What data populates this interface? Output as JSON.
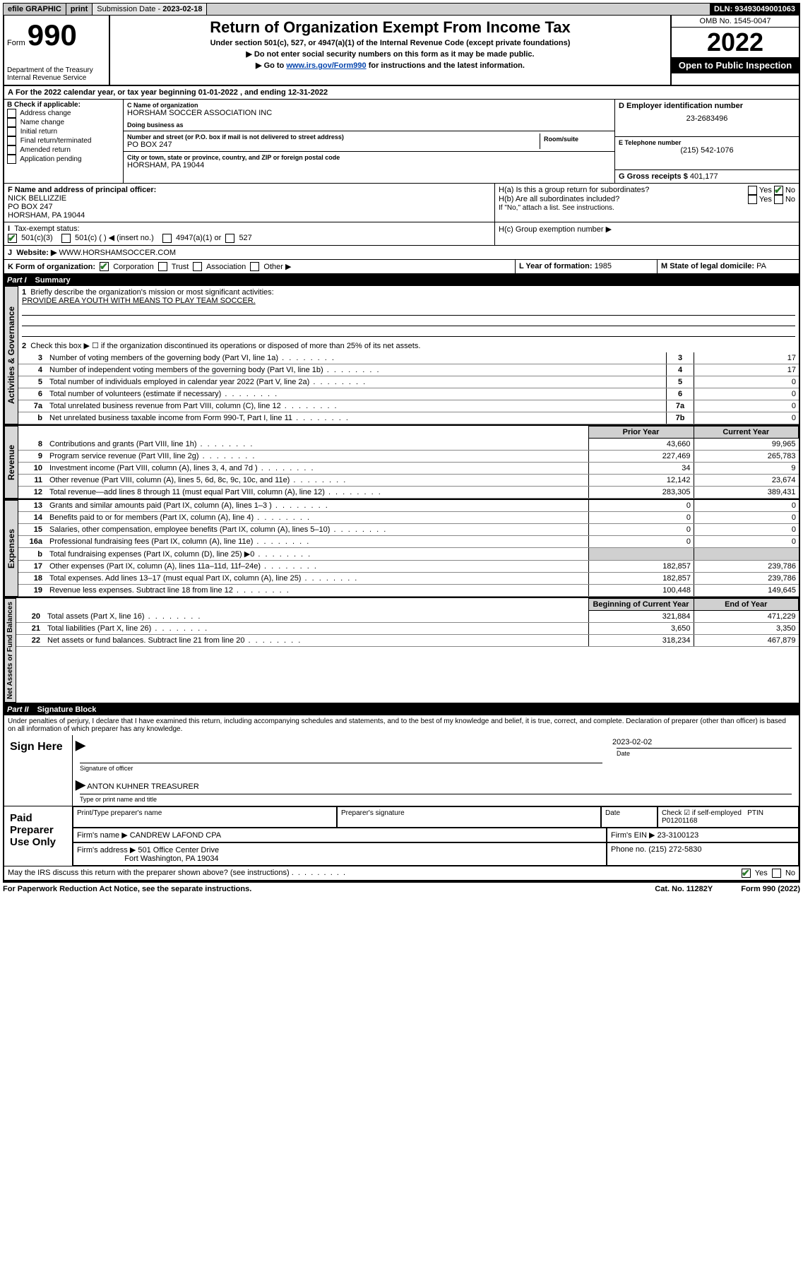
{
  "topbar": {
    "efile": "efile GRAPHIC",
    "print": "print",
    "submission_label": "Submission Date - ",
    "submission_date": "2023-02-18",
    "dln_label": "DLN: ",
    "dln": "93493049001063"
  },
  "header": {
    "form_prefix": "Form",
    "form_no": "990",
    "dept": "Department of the Treasury",
    "irs": "Internal Revenue Service",
    "title": "Return of Organization Exempt From Income Tax",
    "sub1": "Under section 501(c), 527, or 4947(a)(1) of the Internal Revenue Code (except private foundations)",
    "sub2": "▶ Do not enter social security numbers on this form as it may be made public.",
    "sub3_pre": "▶ Go to ",
    "sub3_link": "www.irs.gov/Form990",
    "sub3_post": " for instructions and the latest information.",
    "omb": "OMB No. 1545-0047",
    "year": "2022",
    "badge": "Open to Public Inspection"
  },
  "line_a": {
    "text_pre": "For the 2022 calendar year, or tax year beginning ",
    "begin": "01-01-2022",
    "mid": " , and ending ",
    "end": "12-31-2022"
  },
  "col_b": {
    "label": "B Check if applicable:",
    "opts": [
      "Address change",
      "Name change",
      "Initial return",
      "Final return/terminated",
      "Amended return",
      "Application pending"
    ]
  },
  "col_c": {
    "name_label": "C Name of organization",
    "name": "HORSHAM SOCCER ASSOCIATION INC",
    "dba_label": "Doing business as",
    "street_label": "Number and street (or P.O. box if mail is not delivered to street address)",
    "room_label": "Room/suite",
    "street": "PO BOX 247",
    "city_label": "City or town, state or province, country, and ZIP or foreign postal code",
    "city": "HORSHAM, PA  19044"
  },
  "col_d": {
    "ein_label": "D Employer identification number",
    "ein": "23-2683496",
    "phone_label": "E Telephone number",
    "phone": "(215) 542-1076",
    "gross_label": "G Gross receipts $ ",
    "gross": "401,177"
  },
  "line_f": {
    "label": "F  Name and address of principal officer:",
    "name": "NICK BELLIZZIE",
    "street": "PO BOX 247",
    "city": "HORSHAM, PA  19044"
  },
  "line_h": {
    "a_label": "H(a)  Is this a group return for subordinates?",
    "b_label": "H(b)  Are all subordinates included?",
    "b_note": "If \"No,\" attach a list. See instructions.",
    "c_label": "H(c)  Group exemption number ▶",
    "yes": "Yes",
    "no": "No"
  },
  "line_i": {
    "label": "Tax-exempt status:",
    "opt1": "501(c)(3)",
    "opt2": "501(c) (  ) ◀ (insert no.)",
    "opt3": "4947(a)(1) or",
    "opt4": "527"
  },
  "line_j": {
    "label": "Website: ▶ ",
    "value": "WWW.HORSHAMSOCCER.COM"
  },
  "line_k": {
    "label": "K Form of organization:",
    "opts": [
      "Corporation",
      "Trust",
      "Association",
      "Other ▶"
    ]
  },
  "line_l": {
    "label": "L Year of formation: ",
    "value": "1985"
  },
  "line_m": {
    "label": "M State of legal domicile: ",
    "value": "PA"
  },
  "part1": {
    "label": "Part I",
    "title": "Summary"
  },
  "summary": {
    "q1_label": "Briefly describe the organization's mission or most significant activities:",
    "q1_value": "PROVIDE AREA YOUTH WITH MEANS TO PLAY TEAM SOCCER.",
    "q2_label": "Check this box ▶ ☐  if the organization discontinued its operations or disposed of more than 25% of its net assets.",
    "rows_top": [
      {
        "n": "3",
        "t": "Number of voting members of the governing body (Part VI, line 1a)",
        "box": "3",
        "v": "17"
      },
      {
        "n": "4",
        "t": "Number of independent voting members of the governing body (Part VI, line 1b)",
        "box": "4",
        "v": "17"
      },
      {
        "n": "5",
        "t": "Total number of individuals employed in calendar year 2022 (Part V, line 2a)",
        "box": "5",
        "v": "0"
      },
      {
        "n": "6",
        "t": "Total number of volunteers (estimate if necessary)",
        "box": "6",
        "v": "0"
      },
      {
        "n": "7a",
        "t": "Total unrelated business revenue from Part VIII, column (C), line 12",
        "box": "7a",
        "v": "0"
      },
      {
        "n": "b",
        "t": "Net unrelated business taxable income from Form 990-T, Part I, line 11",
        "box": "7b",
        "v": "0"
      }
    ],
    "col_hdr_prior": "Prior Year",
    "col_hdr_current": "Current Year",
    "revenue": [
      {
        "n": "8",
        "t": "Contributions and grants (Part VIII, line 1h)",
        "p": "43,660",
        "c": "99,965"
      },
      {
        "n": "9",
        "t": "Program service revenue (Part VIII, line 2g)",
        "p": "227,469",
        "c": "265,783"
      },
      {
        "n": "10",
        "t": "Investment income (Part VIII, column (A), lines 3, 4, and 7d )",
        "p": "34",
        "c": "9"
      },
      {
        "n": "11",
        "t": "Other revenue (Part VIII, column (A), lines 5, 6d, 8c, 9c, 10c, and 11e)",
        "p": "12,142",
        "c": "23,674"
      },
      {
        "n": "12",
        "t": "Total revenue—add lines 8 through 11 (must equal Part VIII, column (A), line 12)",
        "p": "283,305",
        "c": "389,431"
      }
    ],
    "expenses": [
      {
        "n": "13",
        "t": "Grants and similar amounts paid (Part IX, column (A), lines 1–3 )",
        "p": "0",
        "c": "0"
      },
      {
        "n": "14",
        "t": "Benefits paid to or for members (Part IX, column (A), line 4)",
        "p": "0",
        "c": "0"
      },
      {
        "n": "15",
        "t": "Salaries, other compensation, employee benefits (Part IX, column (A), lines 5–10)",
        "p": "0",
        "c": "0"
      },
      {
        "n": "16a",
        "t": "Professional fundraising fees (Part IX, column (A), line 11e)",
        "p": "0",
        "c": "0"
      },
      {
        "n": "b",
        "t": "Total fundraising expenses (Part IX, column (D), line 25) ▶0",
        "p": "",
        "c": "",
        "grey": true
      },
      {
        "n": "17",
        "t": "Other expenses (Part IX, column (A), lines 11a–11d, 11f–24e)",
        "p": "182,857",
        "c": "239,786"
      },
      {
        "n": "18",
        "t": "Total expenses. Add lines 13–17 (must equal Part IX, column (A), line 25)",
        "p": "182,857",
        "c": "239,786"
      },
      {
        "n": "19",
        "t": "Revenue less expenses. Subtract line 18 from line 12",
        "p": "100,448",
        "c": "149,645"
      }
    ],
    "col_hdr_begin": "Beginning of Current Year",
    "col_hdr_end": "End of Year",
    "netassets": [
      {
        "n": "20",
        "t": "Total assets (Part X, line 16)",
        "p": "321,884",
        "c": "471,229"
      },
      {
        "n": "21",
        "t": "Total liabilities (Part X, line 26)",
        "p": "3,650",
        "c": "3,350"
      },
      {
        "n": "22",
        "t": "Net assets or fund balances. Subtract line 21 from line 20",
        "p": "318,234",
        "c": "467,879"
      }
    ]
  },
  "vtabs": {
    "gov": "Activities & Governance",
    "rev": "Revenue",
    "exp": "Expenses",
    "net": "Net Assets or Fund Balances"
  },
  "part2": {
    "label": "Part II",
    "title": "Signature Block"
  },
  "sig": {
    "jurat": "Under penalties of perjury, I declare that I have examined this return, including accompanying schedules and statements, and to the best of my knowledge and belief, it is true, correct, and complete. Declaration of preparer (other than officer) is based on all information of which preparer has any knowledge.",
    "sign_here": "Sign Here",
    "sig_officer_label": "Signature of officer",
    "date_label": "Date",
    "date_value": "2023-02-02",
    "name_title": "ANTON KUHNER  TREASURER",
    "name_title_label": "Type or print name and title",
    "paid": "Paid Preparer Use Only",
    "prep_name_label": "Print/Type preparer's name",
    "prep_sig_label": "Preparer's signature",
    "prep_date_label": "Date",
    "check_label": "Check ☑ if self-employed",
    "ptin_label": "PTIN",
    "ptin": "P01201168",
    "firm_name_label": "Firm's name    ▶ ",
    "firm_name": "CANDREW LAFOND CPA",
    "firm_ein_label": "Firm's EIN ▶ ",
    "firm_ein": "23-3100123",
    "firm_addr_label": "Firm's address ▶ ",
    "firm_addr1": "501 Office Center Drive",
    "firm_addr2": "Fort Washington, PA  19034",
    "firm_phone_label": "Phone no. ",
    "firm_phone": "(215) 272-5830",
    "discuss": "May the IRS discuss this return with the preparer shown above? (see instructions)"
  },
  "footer": {
    "left": "For Paperwork Reduction Act Notice, see the separate instructions.",
    "mid": "Cat. No. 11282Y",
    "right": "Form 990 (2022)"
  }
}
